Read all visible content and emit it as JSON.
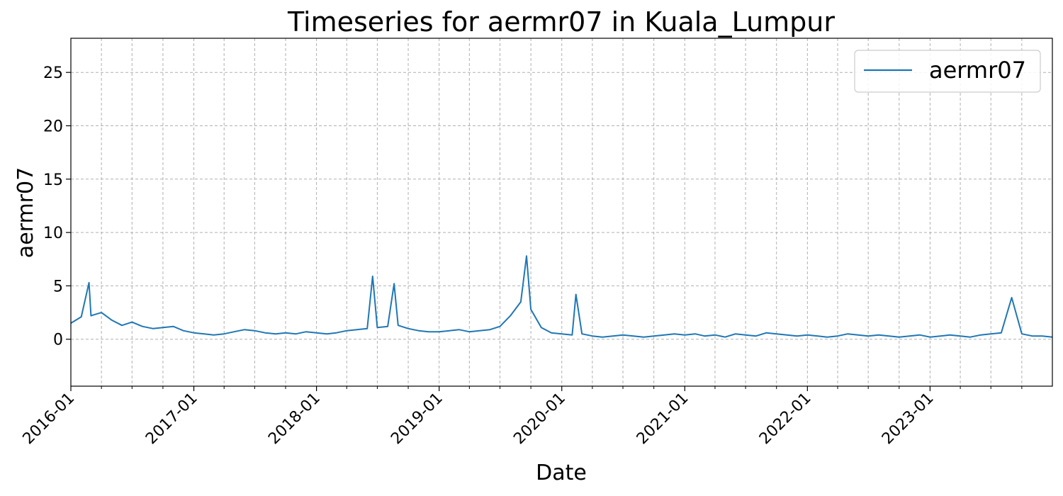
{
  "chart_data": {
    "type": "line",
    "title": "Timeseries for aermr07 in Kuala_Lumpur",
    "xlabel": "Date",
    "ylabel": "aermr07",
    "x_range": [
      "2016-01-01",
      "2023-12-31"
    ],
    "ylim": [
      -4.4,
      28.2
    ],
    "y_ticks": [
      0,
      5,
      10,
      15,
      20,
      25
    ],
    "x_ticks": [
      "2016-01",
      "2017-01",
      "2018-01",
      "2019-01",
      "2020-01",
      "2021-01",
      "2022-01",
      "2023-01"
    ],
    "grid": true,
    "legend_position": "top-right",
    "series": [
      {
        "name": "aermr07",
        "color": "#1f77b4",
        "x": [
          "2016-01-01",
          "2016-02-01",
          "2016-02-24",
          "2016-03-01",
          "2016-04-01",
          "2016-05-01",
          "2016-06-01",
          "2016-07-01",
          "2016-08-01",
          "2016-09-01",
          "2016-10-01",
          "2016-11-01",
          "2016-12-01",
          "2017-01-01",
          "2017-02-01",
          "2017-03-01",
          "2017-04-01",
          "2017-05-01",
          "2017-06-01",
          "2017-07-01",
          "2017-08-01",
          "2017-09-01",
          "2017-10-01",
          "2017-11-01",
          "2017-12-01",
          "2018-01-01",
          "2018-02-01",
          "2018-03-01",
          "2018-04-01",
          "2018-05-01",
          "2018-06-01",
          "2018-06-17",
          "2018-07-01",
          "2018-08-01",
          "2018-08-20",
          "2018-09-01",
          "2018-10-01",
          "2018-11-01",
          "2018-12-01",
          "2019-01-01",
          "2019-02-01",
          "2019-03-01",
          "2019-04-01",
          "2019-05-01",
          "2019-06-01",
          "2019-07-01",
          "2019-08-01",
          "2019-09-01",
          "2019-09-18",
          "2019-10-01",
          "2019-11-01",
          "2019-12-01",
          "2020-01-01",
          "2020-02-01",
          "2020-02-12",
          "2020-03-01",
          "2020-04-01",
          "2020-05-01",
          "2020-06-01",
          "2020-07-01",
          "2020-08-01",
          "2020-09-01",
          "2020-10-01",
          "2020-11-01",
          "2020-12-01",
          "2021-01-01",
          "2021-02-01",
          "2021-03-01",
          "2021-04-01",
          "2021-05-01",
          "2021-06-01",
          "2021-07-01",
          "2021-08-01",
          "2021-09-01",
          "2021-10-01",
          "2021-11-01",
          "2021-12-01",
          "2022-01-01",
          "2022-02-01",
          "2022-03-01",
          "2022-04-01",
          "2022-05-01",
          "2022-06-01",
          "2022-07-01",
          "2022-08-01",
          "2022-09-01",
          "2022-10-01",
          "2022-11-01",
          "2022-12-01",
          "2023-01-01",
          "2023-02-01",
          "2023-03-01",
          "2023-04-01",
          "2023-05-01",
          "2023-06-01",
          "2023-07-01",
          "2023-08-01",
          "2023-09-01",
          "2023-10-01",
          "2023-11-01",
          "2023-12-01",
          "2023-12-31"
        ],
        "y": [
          1.5,
          2.1,
          5.3,
          2.2,
          2.5,
          1.8,
          1.3,
          1.6,
          1.2,
          1.0,
          1.1,
          1.2,
          0.8,
          0.6,
          0.5,
          0.4,
          0.5,
          0.7,
          0.9,
          0.8,
          0.6,
          0.5,
          0.6,
          0.5,
          0.7,
          0.6,
          0.5,
          0.6,
          0.8,
          0.9,
          1.0,
          5.9,
          1.1,
          1.2,
          5.2,
          1.3,
          1.0,
          0.8,
          0.7,
          0.7,
          0.8,
          0.9,
          0.7,
          0.8,
          0.9,
          1.2,
          2.2,
          3.5,
          7.8,
          2.8,
          1.1,
          0.6,
          0.5,
          0.4,
          4.2,
          0.5,
          0.3,
          0.2,
          0.3,
          0.4,
          0.3,
          0.2,
          0.3,
          0.4,
          0.5,
          0.4,
          0.5,
          0.3,
          0.4,
          0.2,
          0.5,
          0.4,
          0.3,
          0.6,
          0.5,
          0.4,
          0.3,
          0.4,
          0.3,
          0.2,
          0.3,
          0.5,
          0.4,
          0.3,
          0.4,
          0.3,
          0.2,
          0.3,
          0.4,
          0.2,
          0.3,
          0.4,
          0.3,
          0.2,
          0.4,
          0.5,
          0.6,
          3.9,
          0.5,
          0.3,
          0.3,
          0.2
        ]
      }
    ]
  }
}
